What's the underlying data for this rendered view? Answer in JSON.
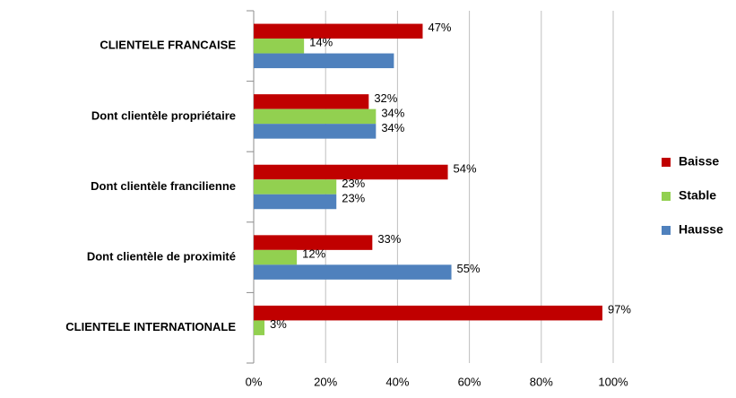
{
  "chart_data": {
    "type": "hbar",
    "categories": [
      "CLIENTELE FRANCAISE",
      "Dont clientèle propriétaire",
      "Dont clientèle francilienne",
      "Dont clientèle de proximité",
      "CLIENTELE INTERNATIONALE"
    ],
    "series": [
      {
        "name": "Baisse",
        "color": "#c00000",
        "values": [
          47,
          32,
          54,
          33,
          97
        ],
        "value_labels": [
          "47%",
          "32%",
          "54%",
          "33%",
          "97%"
        ]
      },
      {
        "name": "Stable",
        "color": "#92d050",
        "values": [
          14,
          34,
          23,
          12,
          3
        ],
        "value_labels": [
          "14%",
          "34%",
          "23%",
          "12%",
          "3%"
        ]
      },
      {
        "name": "Hausse",
        "color": "#4f81bd",
        "values": [
          39,
          34,
          23,
          55,
          0
        ],
        "value_labels": [
          null,
          "34%",
          "23%",
          "55%",
          null
        ]
      }
    ],
    "xlim": [
      0,
      100
    ],
    "xticks": [
      {
        "value": 0,
        "label": "0%"
      },
      {
        "value": 20,
        "label": "20%"
      },
      {
        "value": 40,
        "label": "40%"
      },
      {
        "value": 60,
        "label": "60%"
      },
      {
        "value": 80,
        "label": "80%"
      },
      {
        "value": 100,
        "label": "100%"
      }
    ],
    "grid": true,
    "legend": "right"
  }
}
